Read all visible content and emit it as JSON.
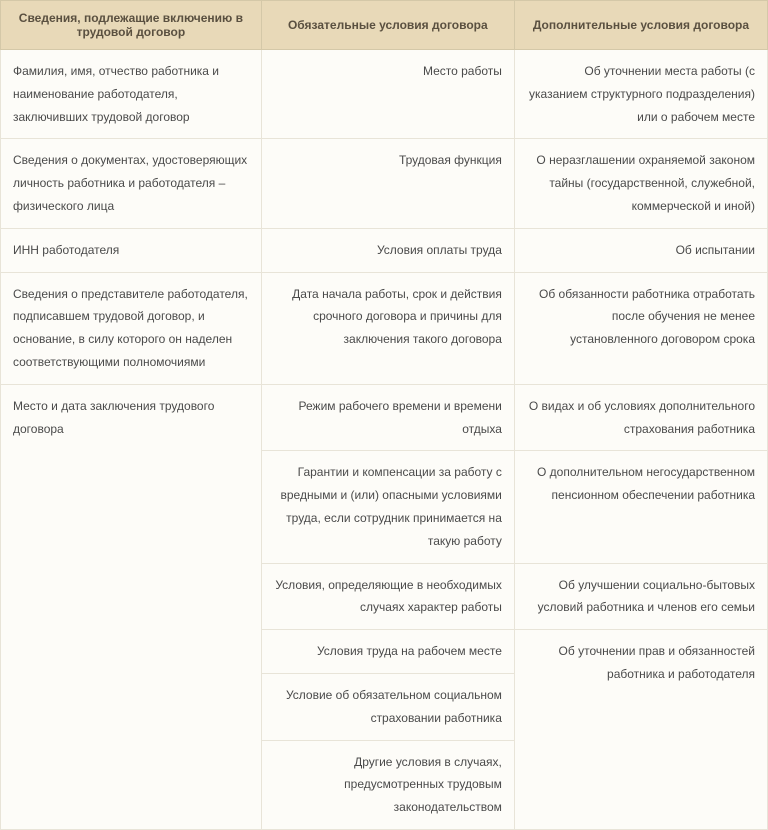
{
  "headers": {
    "col1": "Сведения, подлежащие включению в трудовой договор",
    "col2": "Обязательные условия договора",
    "col3": "Дополнительные условия договора"
  },
  "rows": {
    "r1c1": "Фамилия, имя, отчество работника и наименование работодателя, заключивших трудовой договор",
    "r1c2": "Место работы",
    "r1c3": "Об уточнении места работы (с указанием структурного подразделения) или о рабочем месте",
    "r2c1": "Сведения о документах, удостоверяющих личность работника и работодателя – физического лица",
    "r2c2": "Трудовая функция",
    "r2c3": "О неразглашении охраняемой законом тайны (государственной, служебной, коммерческой и иной)",
    "r3c1": "ИНН работодателя",
    "r3c2": "Условия оплаты труда",
    "r3c3": "Об испытании",
    "r4c1": "Сведения о представителе работодателя, подписавшем трудовой договор, и основание, в силу которого он наделен соответствующими полномочиями",
    "r4c2": "Дата начала работы, срок и действия срочного договора и причины для заключения такого договора",
    "r4c3": "Об обязанности работника отработать после обучения не менее установленного договором срока",
    "r5c1": "Место и дата заключения трудового договора",
    "r5c2": "Режим рабочего времени и времени отдыха",
    "r5c3": "О видах и об условиях дополнительного страхования работника",
    "r6c2": "Гарантии и компенсации за работу с вредными и (или) опасными условиями труда, если сотрудник принимается на такую работу",
    "r6c3": "О дополнительном негосударственном пенсионном обеспечении работника",
    "r7c2": "Условия, определяющие в необходимых случаях характер работы",
    "r7c3": "Об улучшении социально-бытовых условий работника и членов его семьи",
    "r8c2": "Условия труда на рабочем месте",
    "r8c3": "Об уточнении прав и обязанностей работника и работодателя",
    "r9c2": "Условие об обязательном социальном страховании работника",
    "r10c2": "Другие условия в случаях, предусмотренных трудовым законодательством"
  }
}
